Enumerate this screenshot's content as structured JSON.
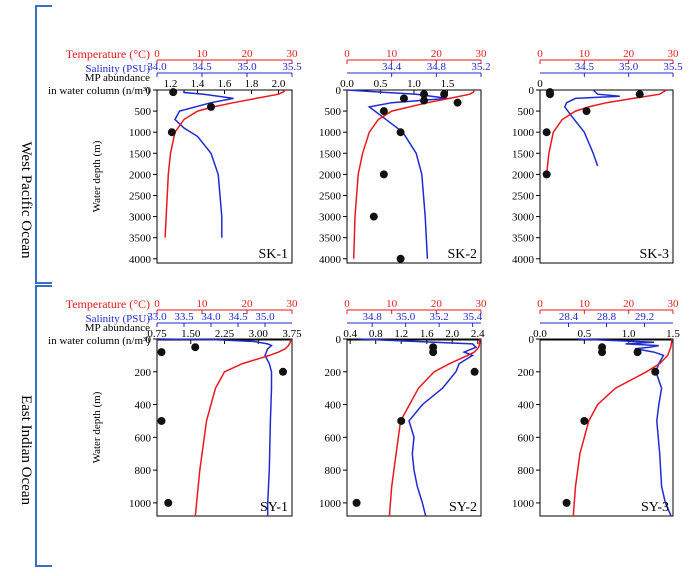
{
  "figure": {
    "groups": [
      {
        "region": "West Pacific Ocean",
        "ylabel": "Water depth (m)",
        "yticks": [
          0,
          500,
          1000,
          1500,
          2000,
          2500,
          3000,
          3500,
          4000
        ],
        "ylim": [
          0,
          4100
        ]
      },
      {
        "region": "East Indian Ocean",
        "ylabel": "Water depth (m)",
        "yticks": [
          0,
          200,
          400,
          600,
          800,
          1000
        ],
        "ylim": [
          0,
          1080
        ]
      }
    ],
    "axis_titles": {
      "temperature": "Temperature (°C)",
      "salinity": "Salinity (PSU)",
      "mp_line1": "MP  abundance",
      "mp_line2": "in water column (n/m³)"
    },
    "colors": {
      "temperature": "#e8191e",
      "salinity": "#1f2bd1",
      "points": "#111111",
      "bracket": "#3b6fc4"
    }
  },
  "chart_data": [
    {
      "type": "line",
      "station": "SK-1",
      "group": 0,
      "temp_ticks": [
        "0",
        "10",
        "20",
        "30"
      ],
      "temp_lim": [
        0,
        30
      ],
      "sal_ticks": [
        "34.0",
        "34.5",
        "35.0",
        "35.5"
      ],
      "sal_lim": [
        34.0,
        35.5
      ],
      "mp_ticks": [
        "1.2",
        "1.4",
        "1.6",
        "1.8",
        "2.0"
      ],
      "mp_lim": [
        1.1,
        2.1
      ],
      "temperature": {
        "depth": [
          0,
          50,
          100,
          200,
          300,
          400,
          500,
          700,
          1000,
          1500,
          2000,
          3500
        ],
        "value": [
          28.5,
          28,
          27,
          22,
          17,
          12.5,
          9,
          6,
          4,
          3,
          2.5,
          1.8
        ]
      },
      "salinity": {
        "depth": [
          0,
          60,
          100,
          200,
          300,
          500,
          700,
          900,
          1100,
          1500,
          2000,
          2500,
          3000,
          3500
        ],
        "value": [
          34.3,
          34.3,
          34.52,
          34.85,
          34.6,
          34.25,
          34.2,
          34.3,
          34.45,
          34.6,
          34.68,
          34.7,
          34.72,
          34.72
        ]
      },
      "mp_points": {
        "depth": [
          50,
          400,
          1000
        ],
        "value": [
          1.22,
          1.5,
          1.21
        ]
      }
    },
    {
      "type": "line",
      "station": "SK-2",
      "group": 0,
      "temp_ticks": [
        "0",
        "10",
        "20",
        "30"
      ],
      "temp_lim": [
        0,
        30
      ],
      "sal_ticks": [
        "34.4",
        "34.8",
        "35.2"
      ],
      "sal_lim": [
        34.0,
        35.2
      ],
      "mp_ticks": [
        "0.0",
        "0.5",
        "1.0",
        "1.5"
      ],
      "mp_lim": [
        0.0,
        2.0
      ],
      "temperature": {
        "depth": [
          0,
          50,
          100,
          200,
          300,
          500,
          700,
          1000,
          1500,
          2000,
          3000,
          4000
        ],
        "value": [
          28.5,
          28.3,
          27.5,
          23,
          18,
          10,
          7,
          5,
          3.5,
          2.5,
          1.8,
          1.5
        ]
      },
      "salinity": {
        "depth": [
          0,
          50,
          100,
          200,
          300,
          400,
          600,
          1000,
          1500,
          2000,
          3000,
          4000
        ],
        "value": [
          34.0,
          34.3,
          34.62,
          34.9,
          34.4,
          34.2,
          34.3,
          34.5,
          34.62,
          34.67,
          34.7,
          34.72
        ]
      },
      "mp_points": {
        "depth": [
          100,
          100,
          200,
          250,
          300,
          500,
          1000,
          2000,
          3000,
          4000
        ],
        "value": [
          1.15,
          1.45,
          0.85,
          1.15,
          1.65,
          0.55,
          0.8,
          0.55,
          0.4,
          0.8
        ]
      }
    },
    {
      "type": "line",
      "station": "SK-3",
      "group": 0,
      "temp_ticks": [
        "0",
        "10",
        "20",
        "30"
      ],
      "temp_lim": [
        0,
        30
      ],
      "sal_ticks": [
        "34.5",
        "35.0",
        "35.5"
      ],
      "sal_lim": [
        34.0,
        35.5
      ],
      "mp_ticks": [
        "0"
      ],
      "mp_lim": [
        0,
        2.0
      ],
      "temperature": {
        "depth": [
          0,
          100,
          200,
          300,
          400,
          500,
          700,
          1000,
          1500,
          2000
        ],
        "value": [
          28.5,
          27,
          21,
          15,
          11,
          8,
          5,
          3,
          2,
          1.5
        ]
      },
      "salinity": {
        "depth": [
          0,
          100,
          150,
          200,
          300,
          400,
          600,
          1000,
          1500,
          1800
        ],
        "value": [
          34.6,
          34.65,
          34.9,
          34.4,
          34.3,
          34.28,
          34.35,
          34.5,
          34.6,
          34.65
        ]
      },
      "mp_points": {
        "depth": [
          50,
          100,
          100,
          500,
          1000,
          2000
        ],
        "value": [
          0.15,
          0.15,
          1.5,
          0.7,
          0.1,
          0.1
        ]
      }
    },
    {
      "type": "line",
      "station": "SY-1",
      "group": 1,
      "temp_ticks": [
        "0",
        "10",
        "20",
        "30"
      ],
      "temp_lim": [
        0,
        30
      ],
      "sal_ticks": [
        "33.0",
        "33.5",
        "34.0",
        "34.5",
        "35.0"
      ],
      "sal_lim": [
        33.0,
        35.5
      ],
      "mp_ticks": [
        "0.75",
        "1.50",
        "2.25",
        "3.00",
        "3.75"
      ],
      "mp_lim": [
        0.75,
        3.75
      ],
      "temperature": {
        "depth": [
          0,
          20,
          40,
          60,
          80,
          100,
          150,
          200,
          300,
          400,
          500,
          600,
          800,
          1000,
          1080
        ],
        "value": [
          29.8,
          29.6,
          29.2,
          28.5,
          27,
          25,
          19,
          15,
          13,
          12,
          11,
          10.5,
          9.5,
          8.8,
          8.5
        ]
      },
      "salinity": {
        "depth": [
          0,
          5,
          15,
          30,
          40,
          60,
          100,
          150,
          200,
          300,
          500,
          800,
          1000,
          1080
        ],
        "value": [
          33.0,
          34.1,
          34.8,
          35.05,
          35.12,
          35.05,
          35.0,
          35.08,
          35.12,
          35.12,
          35.1,
          35.08,
          35.05,
          35.05
        ]
      },
      "mp_points": {
        "depth": [
          50,
          80,
          200,
          500,
          1000
        ],
        "value": [
          1.6,
          0.85,
          3.55,
          0.85,
          1.0
        ]
      }
    },
    {
      "type": "line",
      "station": "SY-2",
      "group": 1,
      "temp_ticks": [
        "0",
        "10",
        "20",
        "30"
      ],
      "temp_lim": [
        0,
        30
      ],
      "sal_ticks": [
        "34.8",
        "35.0",
        "35.2",
        "35.4"
      ],
      "sal_lim": [
        34.65,
        35.45
      ],
      "mp_ticks": [
        "0.4",
        "0.8",
        "1.2",
        "1.6",
        "2.0",
        "2.4"
      ],
      "mp_lim": [
        0.35,
        2.45
      ],
      "temperature": {
        "depth": [
          0,
          20,
          50,
          80,
          100,
          150,
          200,
          300,
          400,
          500,
          700,
          900,
          1080
        ],
        "value": [
          29.8,
          29.7,
          29.5,
          28.5,
          27,
          23,
          19.5,
          16,
          14,
          12,
          11,
          10,
          9.5
        ]
      },
      "salinity": {
        "depth": [
          0,
          30,
          50,
          80,
          100,
          150,
          200,
          300,
          400,
          500,
          600,
          700,
          800,
          900,
          1000,
          1080
        ],
        "value": [
          34.72,
          35.4,
          35.42,
          35.35,
          35.4,
          35.32,
          35.3,
          35.22,
          35.1,
          35.02,
          35.05,
          35.04,
          35.05,
          35.07,
          35.1,
          35.12
        ]
      },
      "mp_points": {
        "depth": [
          50,
          80,
          200,
          500,
          1000
        ],
        "value": [
          1.7,
          1.7,
          2.35,
          1.2,
          0.5
        ]
      }
    },
    {
      "type": "line",
      "station": "SY-3",
      "group": 1,
      "temp_ticks": [
        "0",
        "10",
        "20",
        "30"
      ],
      "temp_lim": [
        0,
        30
      ],
      "sal_ticks": [
        "28.4",
        "28.8",
        "29.2"
      ],
      "sal_lim": [
        28.1,
        29.5
      ],
      "mp_ticks": [
        "0.0",
        "0.5",
        "1.0",
        "1.5"
      ],
      "mp_lim": [
        0.0,
        1.5
      ],
      "temperature": {
        "depth": [
          0,
          50,
          100,
          150,
          200,
          300,
          400,
          500,
          700,
          900,
          1080
        ],
        "value": [
          29.8,
          29.5,
          28.8,
          27,
          24,
          17,
          13,
          11,
          9,
          8,
          7.5
        ]
      },
      "salinity": {
        "depth": [
          0,
          20,
          30,
          40,
          50,
          60,
          80,
          100,
          150,
          200,
          300,
          400,
          500,
          700,
          900,
          1000,
          1080
        ],
        "value": [
          28.5,
          29.3,
          29.0,
          29.35,
          29.25,
          29.1,
          29.3,
          29.4,
          29.35,
          29.32,
          29.38,
          29.35,
          29.33,
          29.36,
          29.38,
          29.42,
          29.48
        ]
      },
      "mp_points": {
        "depth": [
          50,
          80,
          80,
          200,
          500,
          1000
        ],
        "value": [
          0.7,
          0.7,
          1.1,
          1.3,
          0.5,
          0.3
        ]
      }
    }
  ]
}
